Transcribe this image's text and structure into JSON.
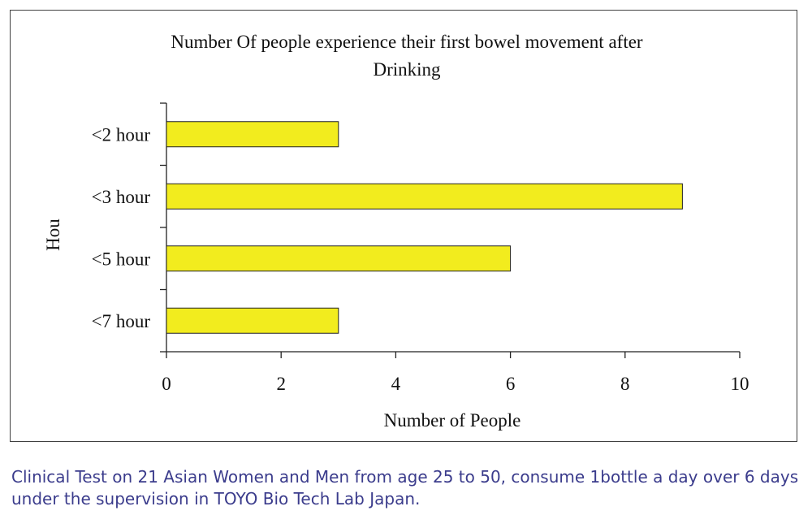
{
  "chart_data": {
    "type": "bar",
    "orientation": "horizontal",
    "title": "Number Of people experience their first bowel movement after Drinking",
    "title_lines": [
      "Number Of people experience their first bowel movement after",
      "Drinking"
    ],
    "categories": [
      "<2 hour",
      "<3 hour",
      "<5 hour",
      "<7 hour"
    ],
    "values": [
      3,
      9,
      6,
      3
    ],
    "xlabel": "Number of People",
    "ylabel": "Hou",
    "xlim": [
      0,
      10
    ],
    "x_ticks": [
      "0",
      "2",
      "4",
      "6",
      "8",
      "10"
    ],
    "bar_color": "#f2ec1e",
    "grid": false,
    "legend": "none"
  },
  "caption": "Clinical Test on 21 Asian Women and Men from age 25 to 50, consume 1bottle a day over 6 days under the supervision in TOYO Bio Tech Lab Japan.",
  "colors": {
    "caption": "#3b3c8c",
    "frame": "#404040",
    "bar_outline": "#222222"
  }
}
